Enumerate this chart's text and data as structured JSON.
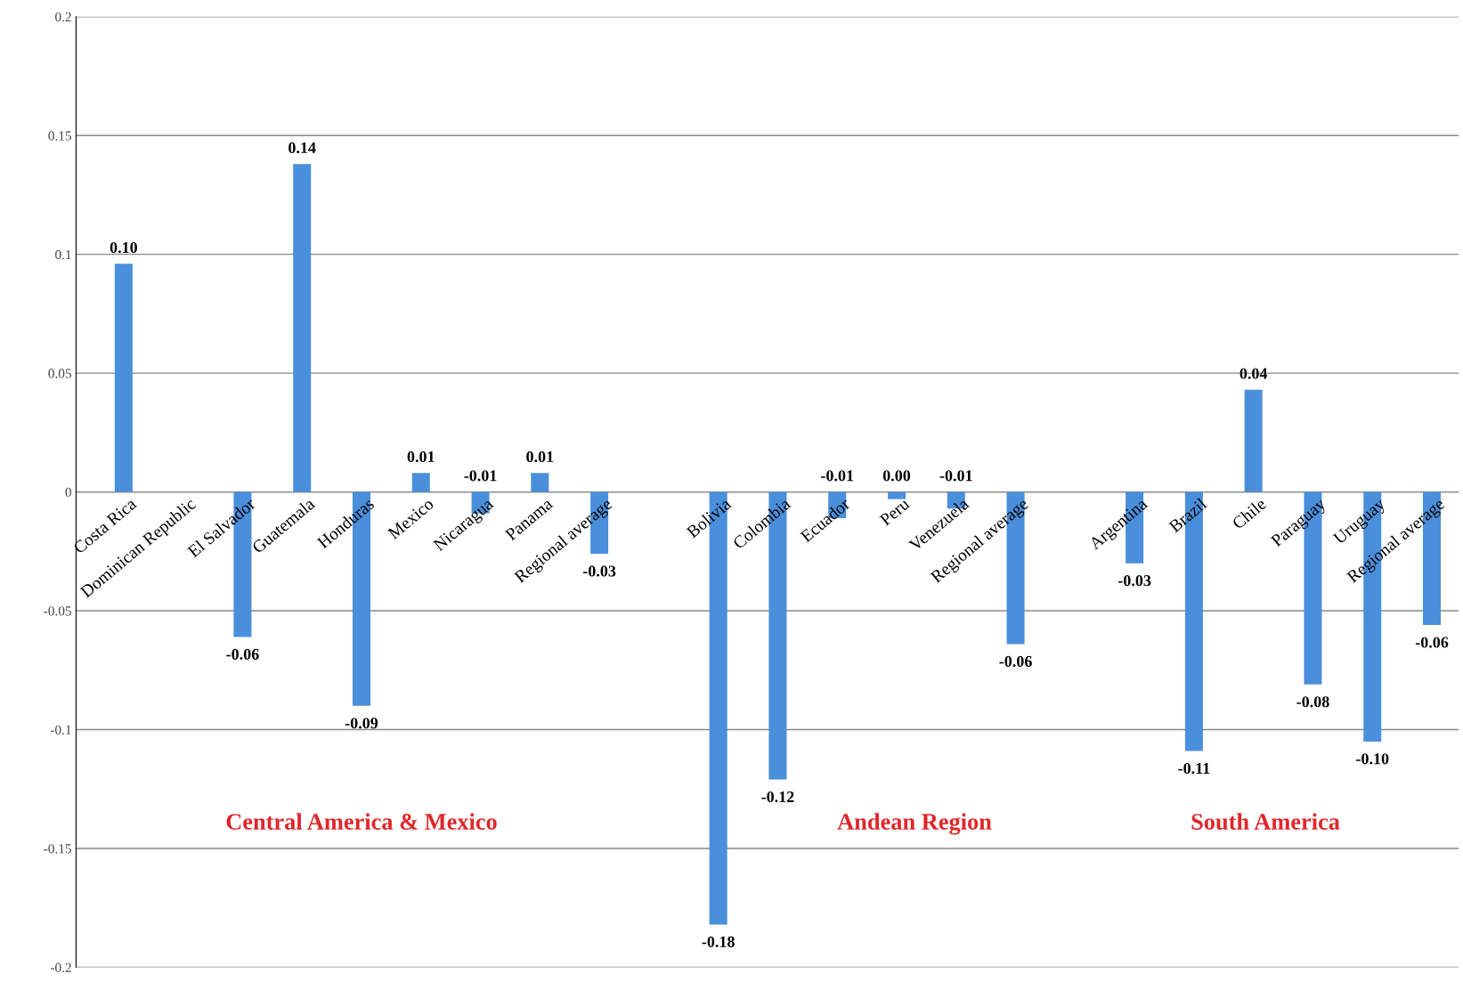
{
  "chart_data": {
    "type": "bar",
    "categories": [
      "Costa Rica",
      "Dominican Republic",
      "El Salvador",
      "Guatemala",
      "Honduras",
      "Mexico",
      "Nicaragua",
      "Panama",
      "Regional average",
      null,
      "Bolivia",
      "Colombia",
      "Ecuador",
      "Peru",
      "Venezuela",
      "Regional average",
      null,
      "Argentina",
      "Brazil",
      "Chile",
      "Paraguay",
      "Uruguay",
      "Regional average"
    ],
    "values": [
      0.096,
      null,
      -0.061,
      0.138,
      -0.09,
      0.008,
      -0.009,
      0.008,
      -0.026,
      null,
      -0.182,
      -0.121,
      -0.011,
      -0.003,
      -0.007,
      -0.064,
      null,
      -0.03,
      -0.109,
      0.043,
      -0.081,
      -0.105,
      -0.056
    ],
    "value_labels": [
      "0.10",
      null,
      "-0.06",
      "0.14",
      "-0.09",
      "0.01",
      "-0.01",
      "0.01",
      "-0.03",
      null,
      "-0.18",
      "-0.12",
      "-0.01",
      "0.00",
      "-0.01",
      "-0.06",
      null,
      "-0.03",
      "-0.11",
      "0.04",
      "-0.08",
      "-0.10",
      "-0.06"
    ],
    "color": "#4a8fdb",
    "ylim": [
      -0.2,
      0.2
    ],
    "yticks": [
      -0.2,
      -0.15,
      -0.1,
      -0.05,
      0,
      0.05,
      0.1,
      0.15,
      0.2
    ],
    "grid": "y",
    "annotations": [
      "Central America & Mexico",
      "Andean Region",
      "South America"
    ]
  }
}
